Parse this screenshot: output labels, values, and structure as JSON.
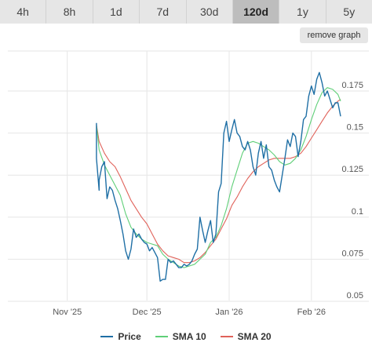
{
  "tabs": [
    {
      "label": "4h",
      "active": false
    },
    {
      "label": "8h",
      "active": false
    },
    {
      "label": "1d",
      "active": false
    },
    {
      "label": "7d",
      "active": false
    },
    {
      "label": "30d",
      "active": false
    },
    {
      "label": "120d",
      "active": true
    },
    {
      "label": "1y",
      "active": false
    },
    {
      "label": "5y",
      "active": false
    }
  ],
  "remove_graph_label": "remove graph",
  "colors": {
    "price": "#1f6fa5",
    "sma10": "#5fcf78",
    "sma20": "#e0625a"
  },
  "chart_data": {
    "type": "line",
    "x_start": "2025-11-07",
    "x_end": "2026-02-12",
    "x_ticks": [
      {
        "date": "2025-11-01",
        "label": "Nov '25"
      },
      {
        "date": "2025-12-01",
        "label": "Dec '25"
      },
      {
        "date": "2026-01-01",
        "label": "Jan '26"
      },
      {
        "date": "2026-02-01",
        "label": "Feb '26"
      }
    ],
    "ylim": [
      0.05,
      0.195
    ],
    "y_ticks": [
      {
        "value": 0.05,
        "label": "0.05"
      },
      {
        "value": 0.075,
        "label": "0.075"
      },
      {
        "value": 0.1,
        "label": "0.1"
      },
      {
        "value": 0.125,
        "label": "0.125"
      },
      {
        "value": 0.15,
        "label": "0.15"
      },
      {
        "value": 0.175,
        "label": "0.175"
      }
    ],
    "grid": true,
    "legend_position": "bottom",
    "series": [
      {
        "name": "Price",
        "color": "#1f6fa5",
        "points": [
          [
            "2025-11-12",
            0.156
          ],
          [
            "2025-11-12",
            0.135
          ],
          [
            "2025-11-13",
            0.116
          ],
          [
            "2025-11-13",
            0.122
          ],
          [
            "2025-11-14",
            0.13
          ],
          [
            "2025-11-15",
            0.133
          ],
          [
            "2025-11-16",
            0.111
          ],
          [
            "2025-11-17",
            0.118
          ],
          [
            "2025-11-18",
            0.116
          ],
          [
            "2025-11-19",
            0.11
          ],
          [
            "2025-11-20",
            0.105
          ],
          [
            "2025-11-21",
            0.098
          ],
          [
            "2025-11-22",
            0.09
          ],
          [
            "2025-11-23",
            0.08
          ],
          [
            "2025-11-24",
            0.075
          ],
          [
            "2025-11-25",
            0.081
          ],
          [
            "2025-11-26",
            0.093
          ],
          [
            "2025-11-27",
            0.088
          ],
          [
            "2025-11-28",
            0.09
          ],
          [
            "2025-11-29",
            0.087
          ],
          [
            "2025-11-30",
            0.085
          ],
          [
            "2025-12-01",
            0.084
          ],
          [
            "2025-12-02",
            0.08
          ],
          [
            "2025-12-03",
            0.082
          ],
          [
            "2025-12-04",
            0.079
          ],
          [
            "2025-12-05",
            0.076
          ],
          [
            "2025-12-06",
            0.062
          ],
          [
            "2025-12-07",
            0.063
          ],
          [
            "2025-12-08",
            0.063
          ],
          [
            "2025-12-09",
            0.075
          ],
          [
            "2025-12-10",
            0.073
          ],
          [
            "2025-12-11",
            0.074
          ],
          [
            "2025-12-12",
            0.072
          ],
          [
            "2025-12-13",
            0.07
          ],
          [
            "2025-12-14",
            0.07
          ],
          [
            "2025-12-15",
            0.072
          ],
          [
            "2025-12-16",
            0.071
          ],
          [
            "2025-12-17",
            0.072
          ],
          [
            "2025-12-18",
            0.074
          ],
          [
            "2025-12-19",
            0.078
          ],
          [
            "2025-12-20",
            0.081
          ],
          [
            "2025-12-21",
            0.1
          ],
          [
            "2025-12-22",
            0.092
          ],
          [
            "2025-12-23",
            0.085
          ],
          [
            "2025-12-24",
            0.092
          ],
          [
            "2025-12-25",
            0.098
          ],
          [
            "2025-12-26",
            0.085
          ],
          [
            "2025-12-27",
            0.09
          ],
          [
            "2025-12-28",
            0.115
          ],
          [
            "2025-12-29",
            0.12
          ],
          [
            "2025-12-30",
            0.15
          ],
          [
            "2025-12-31",
            0.157
          ],
          [
            "2026-01-01",
            0.145
          ],
          [
            "2026-01-02",
            0.152
          ],
          [
            "2026-01-03",
            0.158
          ],
          [
            "2026-01-04",
            0.15
          ],
          [
            "2026-01-05",
            0.148
          ],
          [
            "2026-01-06",
            0.142
          ],
          [
            "2026-01-07",
            0.14
          ],
          [
            "2026-01-08",
            0.145
          ],
          [
            "2026-01-09",
            0.14
          ],
          [
            "2026-01-10",
            0.13
          ],
          [
            "2026-01-11",
            0.125
          ],
          [
            "2026-01-12",
            0.138
          ],
          [
            "2026-01-13",
            0.145
          ],
          [
            "2026-01-14",
            0.135
          ],
          [
            "2026-01-15",
            0.143
          ],
          [
            "2026-01-16",
            0.13
          ],
          [
            "2026-01-17",
            0.128
          ],
          [
            "2026-01-18",
            0.122
          ],
          [
            "2026-01-19",
            0.118
          ],
          [
            "2026-01-20",
            0.115
          ],
          [
            "2026-01-21",
            0.125
          ],
          [
            "2026-01-22",
            0.135
          ],
          [
            "2026-01-23",
            0.146
          ],
          [
            "2026-01-24",
            0.142
          ],
          [
            "2026-01-25",
            0.15
          ],
          [
            "2026-01-26",
            0.148
          ],
          [
            "2026-01-27",
            0.136
          ],
          [
            "2026-01-28",
            0.145
          ],
          [
            "2026-01-29",
            0.158
          ],
          [
            "2026-01-30",
            0.16
          ],
          [
            "2026-01-31",
            0.172
          ],
          [
            "2026-02-01",
            0.178
          ],
          [
            "2026-02-02",
            0.173
          ],
          [
            "2026-02-03",
            0.182
          ],
          [
            "2026-02-04",
            0.186
          ],
          [
            "2026-02-05",
            0.18
          ],
          [
            "2026-02-06",
            0.172
          ],
          [
            "2026-02-07",
            0.175
          ],
          [
            "2026-02-08",
            0.17
          ],
          [
            "2026-02-09",
            0.165
          ],
          [
            "2026-02-10",
            0.168
          ],
          [
            "2026-02-11",
            0.168
          ],
          [
            "2026-02-12",
            0.16
          ]
        ]
      },
      {
        "name": "SMA 10",
        "color": "#5fcf78",
        "points": [
          [
            "2025-11-12",
            0.155
          ],
          [
            "2025-11-13",
            0.14
          ],
          [
            "2025-11-15",
            0.131
          ],
          [
            "2025-11-17",
            0.125
          ],
          [
            "2025-11-19",
            0.119
          ],
          [
            "2025-11-21",
            0.113
          ],
          [
            "2025-11-23",
            0.102
          ],
          [
            "2025-11-25",
            0.094
          ],
          [
            "2025-11-27",
            0.09
          ],
          [
            "2025-11-29",
            0.087
          ],
          [
            "2025-12-01",
            0.085
          ],
          [
            "2025-12-03",
            0.084
          ],
          [
            "2025-12-05",
            0.083
          ],
          [
            "2025-12-07",
            0.078
          ],
          [
            "2025-12-09",
            0.075
          ],
          [
            "2025-12-11",
            0.073
          ],
          [
            "2025-12-13",
            0.071
          ],
          [
            "2025-12-15",
            0.07
          ],
          [
            "2025-12-17",
            0.071
          ],
          [
            "2025-12-19",
            0.072
          ],
          [
            "2025-12-21",
            0.075
          ],
          [
            "2025-12-23",
            0.078
          ],
          [
            "2025-12-25",
            0.085
          ],
          [
            "2025-12-27",
            0.088
          ],
          [
            "2025-12-29",
            0.095
          ],
          [
            "2025-12-31",
            0.105
          ],
          [
            "2026-01-02",
            0.118
          ],
          [
            "2026-01-04",
            0.128
          ],
          [
            "2026-01-06",
            0.138
          ],
          [
            "2026-01-08",
            0.144
          ],
          [
            "2026-01-10",
            0.145
          ],
          [
            "2026-01-12",
            0.144
          ],
          [
            "2026-01-14",
            0.142
          ],
          [
            "2026-01-16",
            0.14
          ],
          [
            "2026-01-18",
            0.137
          ],
          [
            "2026-01-20",
            0.133
          ],
          [
            "2026-01-22",
            0.131
          ],
          [
            "2026-01-24",
            0.132
          ],
          [
            "2026-01-26",
            0.135
          ],
          [
            "2026-01-28",
            0.14
          ],
          [
            "2026-01-30",
            0.148
          ],
          [
            "2026-02-01",
            0.158
          ],
          [
            "2026-02-03",
            0.167
          ],
          [
            "2026-02-05",
            0.174
          ],
          [
            "2026-02-07",
            0.177
          ],
          [
            "2026-02-09",
            0.176
          ],
          [
            "2026-02-11",
            0.173
          ],
          [
            "2026-02-12",
            0.169
          ]
        ]
      },
      {
        "name": "SMA 20",
        "color": "#e0625a",
        "points": [
          [
            "2025-11-12",
            0.155
          ],
          [
            "2025-11-13",
            0.145
          ],
          [
            "2025-11-15",
            0.138
          ],
          [
            "2025-11-17",
            0.133
          ],
          [
            "2025-11-19",
            0.13
          ],
          [
            "2025-11-21",
            0.124
          ],
          [
            "2025-11-23",
            0.117
          ],
          [
            "2025-11-25",
            0.11
          ],
          [
            "2025-11-27",
            0.105
          ],
          [
            "2025-11-29",
            0.1
          ],
          [
            "2025-12-01",
            0.096
          ],
          [
            "2025-12-03",
            0.09
          ],
          [
            "2025-12-05",
            0.084
          ],
          [
            "2025-12-07",
            0.08
          ],
          [
            "2025-12-09",
            0.077
          ],
          [
            "2025-12-11",
            0.076
          ],
          [
            "2025-12-13",
            0.075
          ],
          [
            "2025-12-15",
            0.073
          ],
          [
            "2025-12-17",
            0.073
          ],
          [
            "2025-12-19",
            0.074
          ],
          [
            "2025-12-21",
            0.076
          ],
          [
            "2025-12-23",
            0.079
          ],
          [
            "2025-12-25",
            0.083
          ],
          [
            "2025-12-27",
            0.087
          ],
          [
            "2025-12-29",
            0.093
          ],
          [
            "2025-12-31",
            0.099
          ],
          [
            "2026-01-02",
            0.107
          ],
          [
            "2026-01-04",
            0.112
          ],
          [
            "2026-01-06",
            0.118
          ],
          [
            "2026-01-08",
            0.123
          ],
          [
            "2026-01-10",
            0.127
          ],
          [
            "2026-01-12",
            0.13
          ],
          [
            "2026-01-14",
            0.132
          ],
          [
            "2026-01-16",
            0.134
          ],
          [
            "2026-01-18",
            0.135
          ],
          [
            "2026-01-20",
            0.135
          ],
          [
            "2026-01-22",
            0.135
          ],
          [
            "2026-01-24",
            0.135
          ],
          [
            "2026-01-26",
            0.136
          ],
          [
            "2026-01-28",
            0.138
          ],
          [
            "2026-01-30",
            0.142
          ],
          [
            "2026-02-01",
            0.147
          ],
          [
            "2026-02-03",
            0.152
          ],
          [
            "2026-02-05",
            0.157
          ],
          [
            "2026-02-07",
            0.162
          ],
          [
            "2026-02-09",
            0.166
          ],
          [
            "2026-02-11",
            0.169
          ],
          [
            "2026-02-12",
            0.17
          ]
        ]
      }
    ]
  }
}
